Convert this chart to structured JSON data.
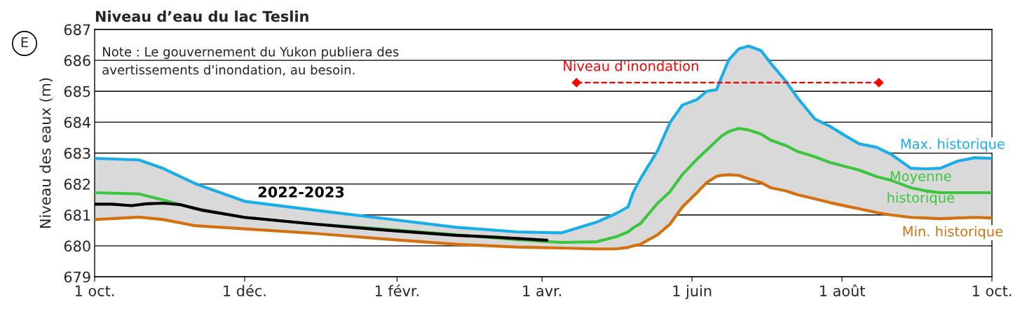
{
  "chart_data": {
    "type": "line",
    "title": "Niveau d’eau du lac Teslin",
    "ylabel": "Niveau des eaux (m)",
    "annotations": [
      "E",
      "Note : Le gouvernement du Yukon publiera des\navertissements d'inondation, au besoin."
    ],
    "x": [
      "2022-10-01",
      "2022-10-19",
      "2022-10-29",
      "2022-11-11",
      "2022-12-01",
      "2022-12-30",
      "2023-01-27",
      "2023-02-25",
      "2023-03-22",
      "2023-04-09",
      "2023-04-23",
      "2023-05-01",
      "2023-05-06",
      "2023-05-08",
      "2023-05-11",
      "2023-05-18",
      "2023-05-23",
      "2023-05-28",
      "2023-06-03",
      "2023-06-07",
      "2023-06-11",
      "2023-06-13",
      "2023-06-16",
      "2023-06-20",
      "2023-06-24",
      "2023-06-29",
      "2023-07-03",
      "2023-07-09",
      "2023-07-14",
      "2023-07-21",
      "2023-07-27",
      "2023-08-03",
      "2023-08-08",
      "2023-08-15",
      "2023-08-21",
      "2023-08-29",
      "2023-09-04",
      "2023-09-10",
      "2023-09-17",
      "2023-09-24",
      "2023-10-01"
    ],
    "series": [
      {
        "name": "Max. historique",
        "color": "#1aaee8",
        "values": [
          682.83,
          682.78,
          682.5,
          682.01,
          681.44,
          681.15,
          680.88,
          680.6,
          680.45,
          680.42,
          680.76,
          681.04,
          681.26,
          681.72,
          682.17,
          683.08,
          683.98,
          684.55,
          684.73,
          685.0,
          685.05,
          685.46,
          686.02,
          686.37,
          686.46,
          686.32,
          685.91,
          685.34,
          684.78,
          684.1,
          683.87,
          683.53,
          683.3,
          683.19,
          682.96,
          682.51,
          682.49,
          682.51,
          682.74,
          682.85,
          682.83
        ]
      },
      {
        "name": "Moyenne\nhistorique",
        "color": "#3dc63d",
        "values": [
          681.72,
          681.68,
          681.48,
          681.2,
          680.92,
          680.7,
          680.54,
          680.36,
          680.2,
          680.11,
          680.13,
          680.29,
          680.45,
          680.58,
          680.72,
          681.38,
          681.75,
          682.3,
          682.8,
          683.1,
          683.4,
          683.55,
          683.7,
          683.8,
          683.75,
          683.62,
          683.42,
          683.25,
          683.05,
          682.88,
          682.7,
          682.55,
          682.45,
          682.24,
          682.12,
          681.88,
          681.78,
          681.72,
          681.72,
          681.72,
          681.72
        ]
      },
      {
        "name": "Min. historique",
        "color": "#d4700f",
        "values": [
          680.85,
          680.93,
          680.85,
          680.65,
          680.55,
          680.4,
          680.22,
          680.05,
          679.96,
          679.93,
          679.9,
          679.9,
          679.95,
          680.0,
          680.05,
          680.36,
          680.7,
          681.25,
          681.72,
          682.05,
          682.25,
          682.28,
          682.3,
          682.28,
          682.17,
          682.05,
          681.88,
          681.78,
          681.65,
          681.52,
          681.4,
          681.28,
          681.2,
          681.08,
          681.0,
          680.92,
          680.9,
          680.88,
          680.9,
          680.92,
          680.9
        ]
      },
      {
        "name": "2022-2023",
        "color": "#000000",
        "x": [
          "2022-10-01",
          "2022-10-08",
          "2022-10-16",
          "2022-10-22",
          "2022-10-29",
          "2022-11-05",
          "2022-11-14",
          "2022-12-01",
          "2022-12-30",
          "2023-01-27",
          "2023-02-25",
          "2023-03-11",
          "2023-04-03"
        ],
        "values": [
          681.35,
          681.35,
          681.3,
          681.36,
          681.38,
          681.33,
          681.15,
          680.92,
          680.7,
          680.51,
          680.34,
          680.29,
          680.18
        ]
      },
      {
        "name": "Niveau d'inondation",
        "color": "#ff0000",
        "marker": "diamond",
        "line_style": "dashed",
        "x": [
          "2023-04-15",
          "2023-08-16"
        ],
        "values": [
          685.28,
          685.28
        ]
      }
    ],
    "xlim": [
      "2022-10-01",
      "2023-10-01"
    ],
    "xticks": [
      {
        "value": "2022-10-01",
        "label": "1 oct."
      },
      {
        "value": "2022-12-01",
        "label": "1 déc."
      },
      {
        "value": "2023-02-01",
        "label": "1 févr."
      },
      {
        "value": "2023-04-01",
        "label": "1 avr."
      },
      {
        "value": "2023-06-01",
        "label": "1 juin"
      },
      {
        "value": "2023-08-01",
        "label": "1 août"
      },
      {
        "value": "2023-10-01",
        "label": "1 oct."
      }
    ],
    "ylim": [
      679,
      687
    ],
    "yticks": [
      679,
      680,
      681,
      682,
      683,
      684,
      685,
      686,
      687
    ],
    "grid": "y",
    "legend": false
  }
}
